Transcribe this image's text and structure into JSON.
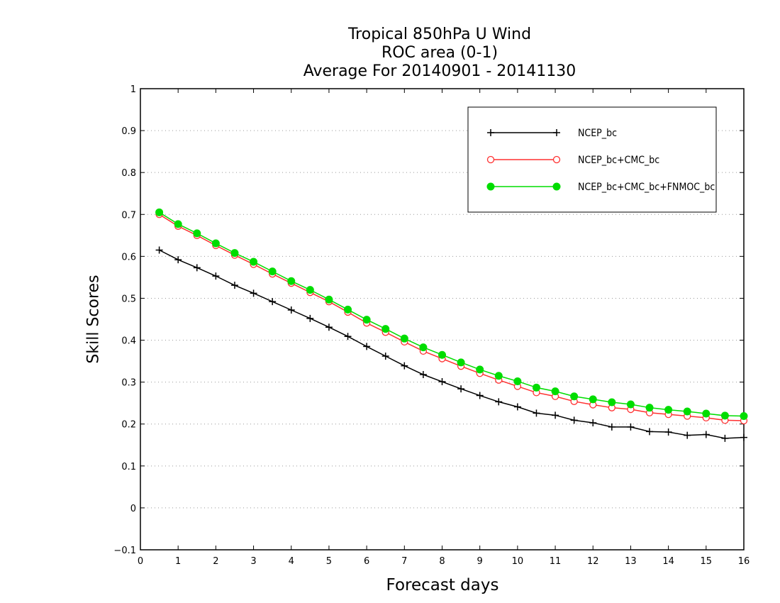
{
  "chart_data": {
    "type": "line",
    "title": [
      "Tropical 850hPa U Wind",
      "ROC area (0-1)",
      "Average For 20140901 - 20141130"
    ],
    "xlabel": "Forecast days",
    "ylabel": "Skill Scores",
    "xlim": [
      0,
      16
    ],
    "ylim": [
      -0.1,
      1
    ],
    "xticks": [
      "0",
      "1",
      "2",
      "3",
      "4",
      "5",
      "6",
      "7",
      "8",
      "9",
      "10",
      "11",
      "12",
      "13",
      "14",
      "15",
      "16"
    ],
    "yticks": [
      "−0.1",
      "0",
      "0.1",
      "0.2",
      "0.3",
      "0.4",
      "0.5",
      "0.6",
      "0.7",
      "0.8",
      "0.9",
      "1"
    ],
    "grid": "horizontal dotted",
    "legend_position": "top-right",
    "x": [
      0.5,
      1,
      1.5,
      2,
      2.5,
      3,
      3.5,
      4,
      4.5,
      5,
      5.5,
      6,
      6.5,
      7,
      7.5,
      8,
      8.5,
      9,
      9.5,
      10,
      10.5,
      11,
      11.5,
      12,
      12.5,
      13,
      13.5,
      14,
      14.5,
      15,
      15.5,
      16
    ],
    "series": [
      {
        "name": "NCEP_bc",
        "color": "#000000",
        "marker": "plus",
        "values": [
          0.615,
          0.592,
          0.573,
          0.553,
          0.531,
          0.512,
          0.492,
          0.472,
          0.452,
          0.431,
          0.409,
          0.385,
          0.362,
          0.339,
          0.318,
          0.301,
          0.284,
          0.268,
          0.253,
          0.241,
          0.226,
          0.221,
          0.209,
          0.203,
          0.193,
          0.193,
          0.182,
          0.181,
          0.173,
          0.175,
          0.166,
          0.168
        ]
      },
      {
        "name": "NCEP_bc+CMC_bc",
        "color": "#ff3030",
        "marker": "open-circle",
        "values": [
          0.7,
          0.672,
          0.65,
          0.626,
          0.603,
          0.581,
          0.558,
          0.536,
          0.514,
          0.492,
          0.467,
          0.441,
          0.419,
          0.396,
          0.374,
          0.356,
          0.338,
          0.321,
          0.305,
          0.29,
          0.275,
          0.266,
          0.254,
          0.246,
          0.239,
          0.235,
          0.227,
          0.223,
          0.219,
          0.215,
          0.209,
          0.208
        ]
      },
      {
        "name": "NCEP_bc+CMC_bc+FNMOC_bc",
        "color": "#00dd00",
        "marker": "filled-circle",
        "values": [
          0.705,
          0.677,
          0.655,
          0.631,
          0.608,
          0.587,
          0.564,
          0.541,
          0.52,
          0.497,
          0.473,
          0.449,
          0.427,
          0.404,
          0.383,
          0.365,
          0.347,
          0.33,
          0.315,
          0.302,
          0.287,
          0.278,
          0.266,
          0.259,
          0.252,
          0.247,
          0.239,
          0.234,
          0.23,
          0.225,
          0.22,
          0.219
        ]
      }
    ]
  }
}
